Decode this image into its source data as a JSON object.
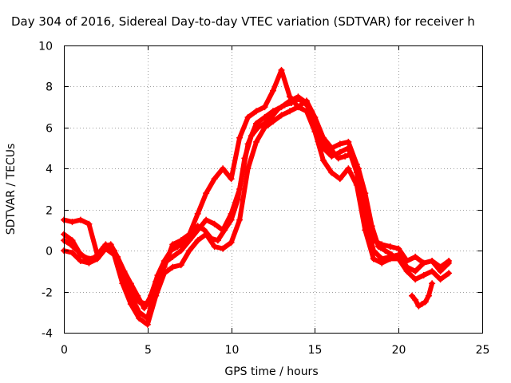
{
  "chart_data": {
    "type": "scatter",
    "title": "Day 304 of 2016, Sidereal Day-to-day VTEC variation (SDTVAR) for receiver h",
    "xlabel": "GPS time / hours",
    "ylabel": "SDTVAR / TECUs",
    "xlim": [
      0,
      25
    ],
    "ylim": [
      -4,
      10
    ],
    "xticks": [
      "0",
      "5",
      "10",
      "15",
      "20",
      "25"
    ],
    "yticks": [
      "-4",
      "-2",
      "0",
      "2",
      "4",
      "6",
      "8",
      "10"
    ],
    "xtick_values": [
      0,
      5,
      10,
      15,
      20,
      25
    ],
    "ytick_values": [
      -4,
      -2,
      0,
      2,
      4,
      6,
      8,
      10
    ],
    "grid": true,
    "marker": "+",
    "color": "#ff0000",
    "series": [
      {
        "name": "track-1",
        "x": [
          0.0,
          0.5,
          1.0,
          1.5,
          2.0,
          2.5,
          3.0,
          3.5,
          4.0,
          4.5,
          5.0,
          5.5,
          6.0,
          6.5,
          7.0,
          7.5,
          8.0,
          8.5,
          9.0,
          9.5,
          10.0,
          10.5,
          11.0,
          11.5,
          12.0,
          12.5,
          13.0,
          13.5,
          14.0,
          14.5,
          15.0,
          15.5,
          16.0,
          16.5,
          17.0,
          17.5,
          18.0,
          18.5,
          19.0,
          19.5,
          20.0,
          20.5,
          21.0,
          21.5,
          22.0,
          22.5,
          23.0
        ],
        "y": [
          1.5,
          1.4,
          1.5,
          1.3,
          -0.2,
          0.2,
          0.0,
          -1.0,
          -1.8,
          -2.5,
          -2.6,
          -1.5,
          -0.8,
          0.3,
          0.5,
          0.8,
          1.8,
          2.8,
          3.5,
          4.0,
          3.5,
          5.5,
          6.5,
          6.8,
          7.0,
          7.8,
          8.8,
          7.5,
          7.0,
          7.3,
          6.5,
          5.5,
          5.0,
          5.2,
          5.3,
          4.2,
          2.5,
          0.5,
          0.3,
          0.2,
          0.1,
          -0.5,
          -0.3,
          -0.6,
          -0.5,
          -1.0,
          -0.6
        ]
      },
      {
        "name": "track-2",
        "x": [
          0.0,
          0.5,
          1.0,
          1.5,
          2.0,
          2.5,
          3.0,
          3.5,
          4.0,
          4.5,
          5.0,
          5.5,
          6.0,
          6.5,
          7.0,
          7.5,
          8.0,
          8.5,
          9.0,
          9.5,
          10.0,
          10.5,
          11.0,
          11.5,
          12.0,
          12.5,
          13.0,
          13.5,
          14.0,
          14.5,
          15.0,
          15.5,
          16.0,
          16.5,
          17.0,
          17.5,
          18.0,
          18.5,
          19.0,
          19.5,
          20.0,
          20.5,
          21.0,
          21.5,
          22.0,
          22.5,
          23.0
        ],
        "y": [
          0.8,
          0.5,
          -0.2,
          -0.4,
          -0.3,
          0.3,
          0.0,
          -1.2,
          -2.2,
          -3.0,
          -3.3,
          -1.8,
          -0.6,
          -0.3,
          0.0,
          0.5,
          1.0,
          1.5,
          1.3,
          1.0,
          1.8,
          3.0,
          5.2,
          6.2,
          6.5,
          6.8,
          7.0,
          7.3,
          7.5,
          7.2,
          6.3,
          5.0,
          4.6,
          4.8,
          5.0,
          3.8,
          1.8,
          0.0,
          -0.4,
          -0.3,
          -0.2,
          -0.8,
          -1.0,
          -0.6,
          -0.5,
          -0.8,
          -0.5
        ]
      },
      {
        "name": "track-3",
        "x": [
          0.0,
          0.5,
          1.0,
          1.5,
          2.0,
          2.5,
          3.0,
          3.5,
          4.0,
          4.5,
          5.0,
          5.5,
          6.0,
          6.5,
          7.0,
          7.5,
          8.0,
          8.5,
          9.0,
          9.5,
          10.0,
          10.5,
          11.0,
          11.5,
          12.0,
          12.5,
          13.0,
          13.5,
          14.0,
          14.5,
          15.0,
          15.5,
          16.0,
          16.5,
          17.0,
          17.5,
          18.0,
          18.5,
          19.0,
          19.5,
          20.0,
          20.5,
          21.0,
          21.5,
          22.0,
          22.5,
          23.0
        ],
        "y": [
          0.0,
          -0.1,
          -0.5,
          -0.6,
          -0.4,
          0.1,
          -0.2,
          -1.6,
          -2.6,
          -3.3,
          -3.6,
          -2.2,
          -1.1,
          -0.8,
          -0.7,
          0.0,
          0.5,
          0.8,
          0.2,
          0.1,
          0.4,
          1.5,
          4.0,
          5.3,
          6.0,
          6.3,
          6.6,
          6.8,
          7.0,
          6.8,
          5.8,
          4.4,
          3.8,
          3.5,
          4.0,
          3.2,
          1.0,
          -0.4,
          -0.6,
          -0.4,
          -0.4,
          -1.0,
          -1.4,
          -1.2,
          -1.0,
          -1.4,
          -1.1
        ]
      },
      {
        "name": "track-4",
        "x": [
          0.0,
          0.4,
          0.8,
          1.2,
          1.6,
          2.0,
          2.4,
          2.8,
          3.2,
          3.6,
          4.0,
          4.4,
          4.8,
          5.2,
          5.6,
          6.0,
          6.4,
          6.8,
          7.2,
          7.6,
          8.0,
          8.4,
          8.8,
          9.2,
          9.6,
          10.0,
          10.4,
          10.8,
          11.2,
          11.6,
          12.0,
          12.4,
          12.8,
          13.2,
          13.6,
          14.0,
          14.4,
          14.8,
          15.2,
          15.6,
          16.0,
          16.4,
          16.8,
          17.2,
          17.6,
          18.0,
          18.4,
          18.8,
          19.2,
          19.6
        ],
        "y": [
          0.5,
          0.3,
          0.0,
          -0.3,
          -0.5,
          -0.2,
          0.2,
          0.3,
          -0.3,
          -1.0,
          -1.6,
          -2.2,
          -2.8,
          -2.2,
          -1.2,
          -0.5,
          0.0,
          0.2,
          0.4,
          0.8,
          1.2,
          1.0,
          0.6,
          0.5,
          1.0,
          1.5,
          2.5,
          4.5,
          5.6,
          6.0,
          6.2,
          6.5,
          6.9,
          7.1,
          7.2,
          7.4,
          7.2,
          6.8,
          6.0,
          5.2,
          4.9,
          4.5,
          4.6,
          4.7,
          4.0,
          2.8,
          1.2,
          0.2,
          0.0,
          -0.2
        ]
      },
      {
        "name": "track-5",
        "x": [
          20.8,
          21.0,
          21.2,
          21.4,
          21.6,
          21.8,
          22.0
        ],
        "y": [
          -2.2,
          -2.4,
          -2.7,
          -2.6,
          -2.5,
          -2.2,
          -1.6
        ]
      }
    ]
  }
}
